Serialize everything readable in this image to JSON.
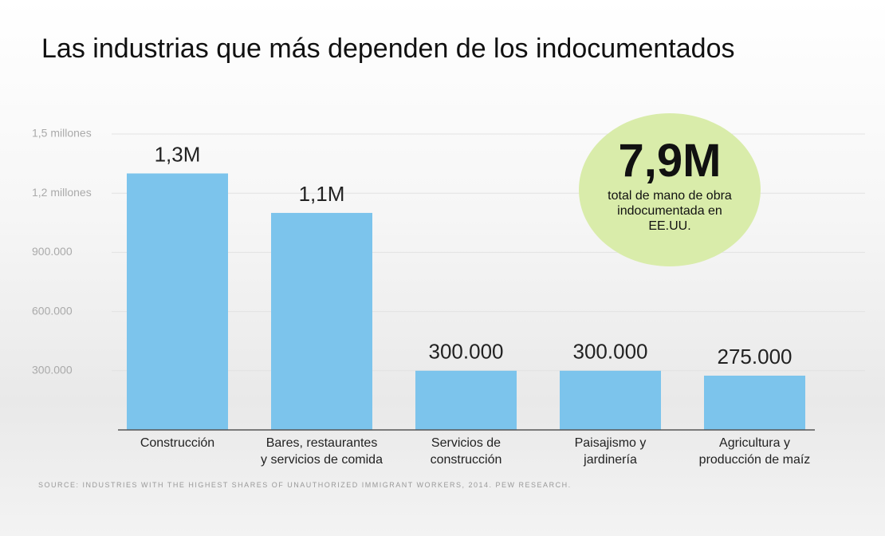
{
  "chart_data": {
    "type": "bar",
    "title": "Las industrias que más dependen de los indocumentados",
    "categories": [
      "Construcción",
      "Bares, restaurantes\ny servicios de comida",
      "Servicios de\nconstrucción",
      "Paisajismo y\njardinería",
      "Agricultura y\nproducción de maíz"
    ],
    "values": [
      1300000,
      1100000,
      300000,
      300000,
      275000
    ],
    "value_labels": [
      "1,3M",
      "1,1M",
      "300.000",
      "300.000",
      "275.000"
    ],
    "color": "#7cc4ec",
    "ylim": [
      0,
      1500000
    ],
    "yticks": [
      {
        "value": 300000,
        "label": "300.000"
      },
      {
        "value": 600000,
        "label": "600.000"
      },
      {
        "value": 900000,
        "label": "900.000"
      },
      {
        "value": 1200000,
        "label": "1,2  millones"
      },
      {
        "value": 1500000,
        "label": "1,5  millones"
      }
    ],
    "grid": true,
    "annotations": {
      "total": "7,9M",
      "total_note": "total de mano de obra indocumentada en EE.UU."
    },
    "source": "SOURCE: INDUSTRIES WITH THE HIGHEST SHARES OF UNAUTHORIZED IMMIGRANT WORKERS, 2014. PEW RESEARCH."
  }
}
